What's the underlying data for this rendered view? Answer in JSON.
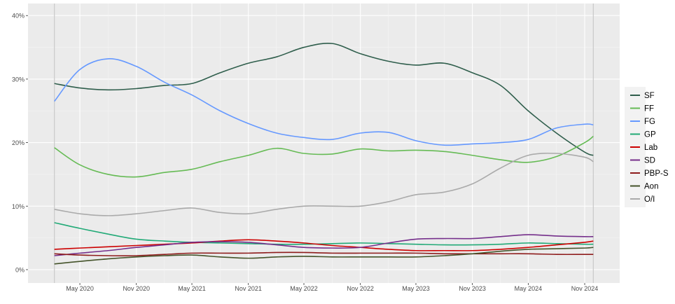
{
  "chart_data": {
    "type": "line",
    "title": "",
    "xlabel": "",
    "ylabel": "",
    "ylim": [
      -2.1,
      41.9
    ],
    "xlim": [
      "2019-11-14",
      "2025-02-23"
    ],
    "grid": true,
    "legend_placement": "right",
    "y_ticks": [
      "0%",
      "10%",
      "20%",
      "30%",
      "40%"
    ],
    "y_tick_values": [
      0,
      10,
      20,
      30,
      40
    ],
    "x_ticks": [
      "May 2020",
      "Nov 2020",
      "May 2021",
      "Nov 2021",
      "May 2022",
      "Nov 2022",
      "May 2023",
      "Nov 2023",
      "May 2024",
      "Nov 2024"
    ],
    "x_tick_dates": [
      "2020-05-01",
      "2020-11-01",
      "2021-05-01",
      "2021-11-01",
      "2022-05-01",
      "2022-11-01",
      "2023-05-01",
      "2023-11-01",
      "2024-05-01",
      "2024-11-01"
    ],
    "reference_lines": [
      "2020-02-08",
      "2024-11-29"
    ],
    "x": [
      "2020-02-08",
      "2020-05-01",
      "2020-08-01",
      "2020-11-01",
      "2021-02-01",
      "2021-05-01",
      "2021-08-01",
      "2021-11-01",
      "2022-02-01",
      "2022-05-01",
      "2022-08-01",
      "2022-11-01",
      "2023-02-01",
      "2023-05-01",
      "2023-08-01",
      "2023-11-01",
      "2024-02-01",
      "2024-05-01",
      "2024-08-01",
      "2024-11-01",
      "2024-11-29"
    ],
    "series": [
      {
        "name": "SF",
        "color": "#2f5e4c",
        "values": [
          29.3,
          28.6,
          28.3,
          28.5,
          29,
          29.3,
          31,
          32.5,
          33.5,
          35,
          35.6,
          34,
          32.8,
          32.2,
          32.5,
          31,
          29,
          25,
          21.5,
          18.5,
          18
        ]
      },
      {
        "name": "FF",
        "color": "#66bb55",
        "values": [
          19.2,
          16.5,
          15,
          14.6,
          15.3,
          15.8,
          17,
          18,
          19.1,
          18.3,
          18.2,
          19,
          18.7,
          18.8,
          18.6,
          18,
          17.3,
          16.9,
          17.8,
          20,
          21
        ]
      },
      {
        "name": "FG",
        "color": "#6699ff",
        "values": [
          26.5,
          31.5,
          33.2,
          32,
          29.5,
          27.5,
          25,
          23,
          21.5,
          20.8,
          20.5,
          21.5,
          21.6,
          20.3,
          19.6,
          19.8,
          20,
          20.5,
          22.3,
          22.9,
          22.8
        ]
      },
      {
        "name": "GP",
        "color": "#22aa77",
        "values": [
          7.4,
          6.5,
          5.6,
          4.8,
          4.5,
          4.3,
          4.2,
          4.1,
          4,
          4,
          4.1,
          4.2,
          4.1,
          4,
          3.9,
          3.9,
          4,
          4.2,
          4.1,
          4,
          4
        ]
      },
      {
        "name": "Lab",
        "color": "#cc0000",
        "values": [
          3.2,
          3.4,
          3.6,
          3.8,
          4,
          4.2,
          4.5,
          4.7,
          4.5,
          4.2,
          3.8,
          3.5,
          3.2,
          3,
          3,
          3,
          3.2,
          3.5,
          3.9,
          4.3,
          4.5
        ]
      },
      {
        "name": "SD",
        "color": "#752f8b",
        "values": [
          2.2,
          2.6,
          3,
          3.5,
          3.9,
          4.3,
          4.4,
          4.3,
          3.9,
          3.5,
          3.4,
          3.5,
          4.2,
          4.8,
          4.9,
          4.9,
          5.2,
          5.5,
          5.3,
          5.2,
          5.2
        ]
      },
      {
        "name": "PBP-S",
        "color": "#8e1c1c",
        "values": [
          2.5,
          2.3,
          2.2,
          2.2,
          2.4,
          2.6,
          2.6,
          2.6,
          2.7,
          2.7,
          2.6,
          2.6,
          2.6,
          2.6,
          2.5,
          2.5,
          2.5,
          2.5,
          2.4,
          2.4,
          2.4
        ]
      },
      {
        "name": "Aon",
        "color": "#44532a",
        "values": [
          0.9,
          1.3,
          1.7,
          2,
          2.2,
          2.3,
          2,
          1.8,
          2,
          2.1,
          2,
          2,
          2,
          2,
          2.2,
          2.5,
          2.9,
          3.2,
          3.3,
          3.4,
          3.5
        ]
      },
      {
        "name": "O/I",
        "color": "#aaaaaa",
        "values": [
          9.5,
          8.8,
          8.5,
          8.8,
          9.3,
          9.7,
          9,
          8.8,
          9.5,
          10,
          10,
          10,
          10.7,
          11.8,
          12.2,
          13.5,
          16,
          18,
          18.3,
          17.7,
          17
        ]
      }
    ]
  }
}
